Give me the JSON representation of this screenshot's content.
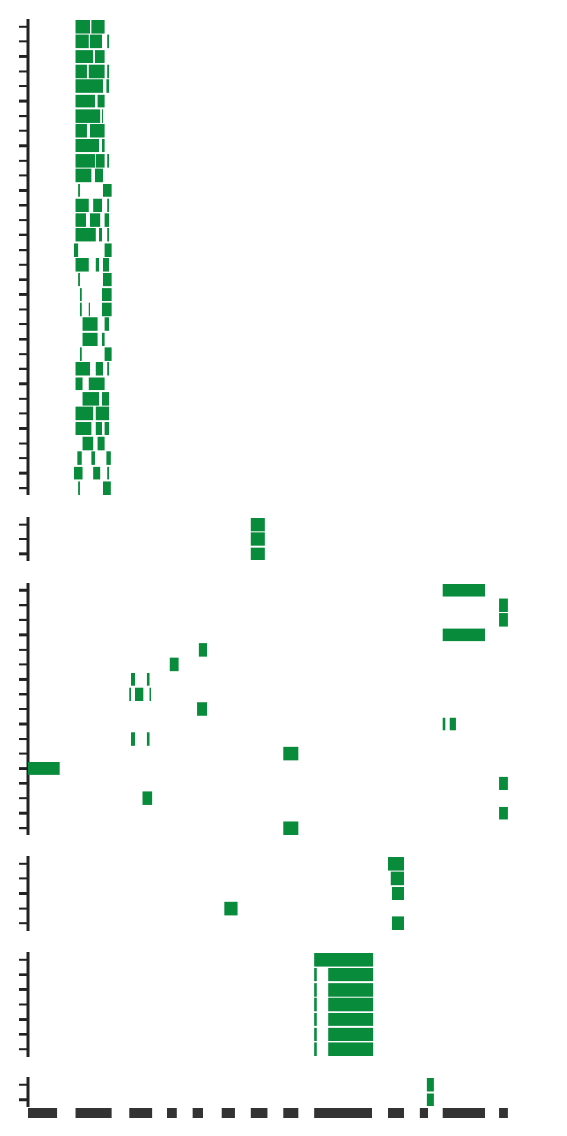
{
  "chart_data": {
    "type": "heatmap",
    "title": "",
    "xlabel": "",
    "ylabel": "",
    "grid": false,
    "legend": "none",
    "colors": {
      "cell": "#098b3c",
      "axis": "#333333",
      "tick": "#222222",
      "background": "#ffffff"
    },
    "x_range": [
      0,
      362
    ],
    "column_groups": [
      {
        "start": 0,
        "end": 20
      },
      {
        "start": 33,
        "end": 58
      },
      {
        "start": 70,
        "end": 86
      },
      {
        "start": 96,
        "end": 103
      },
      {
        "start": 114,
        "end": 121
      },
      {
        "start": 134,
        "end": 143
      },
      {
        "start": 154,
        "end": 166
      },
      {
        "start": 177,
        "end": 187
      },
      {
        "start": 198,
        "end": 238
      },
      {
        "start": 249,
        "end": 260
      },
      {
        "start": 271,
        "end": 277
      },
      {
        "start": 287,
        "end": 316
      },
      {
        "start": 326,
        "end": 332
      }
    ],
    "panels": [
      {
        "id": 1,
        "row_count": 32,
        "rows": [
          [
            [
              33,
              43
            ],
            [
              44,
              53
            ]
          ],
          [
            [
              33,
              42
            ],
            [
              43,
              51
            ],
            [
              55,
              56
            ]
          ],
          [
            [
              33,
              45
            ],
            [
              46,
              53
            ]
          ],
          [
            [
              33,
              41
            ],
            [
              42,
              53
            ],
            [
              55,
              56
            ]
          ],
          [
            [
              33,
              52
            ],
            [
              54,
              56
            ]
          ],
          [
            [
              33,
              46
            ],
            [
              48,
              53
            ]
          ],
          [
            [
              33,
              50
            ],
            [
              51,
              52
            ]
          ],
          [
            [
              33,
              41
            ],
            [
              43,
              53
            ]
          ],
          [
            [
              33,
              49
            ],
            [
              51,
              53
            ]
          ],
          [
            [
              33,
              46
            ],
            [
              47,
              53
            ],
            [
              55,
              56
            ]
          ],
          [
            [
              33,
              44
            ],
            [
              46,
              52
            ]
          ],
          [
            [
              35,
              36
            ],
            [
              52,
              58
            ]
          ],
          [
            [
              33,
              42
            ],
            [
              45,
              51
            ],
            [
              55,
              56
            ]
          ],
          [
            [
              33,
              40
            ],
            [
              43,
              50
            ],
            [
              53,
              56
            ]
          ],
          [
            [
              33,
              47
            ],
            [
              49,
              51
            ],
            [
              55,
              56
            ]
          ],
          [
            [
              32,
              35
            ],
            [
              53,
              58
            ]
          ],
          [
            [
              33,
              42
            ],
            [
              47,
              49
            ],
            [
              52,
              56
            ]
          ],
          [
            [
              35,
              36
            ],
            [
              52,
              58
            ]
          ],
          [
            [
              36,
              37
            ],
            [
              51,
              58
            ]
          ],
          [
            [
              36,
              37
            ],
            [
              42,
              43
            ],
            [
              51,
              58
            ]
          ],
          [
            [
              38,
              48
            ],
            [
              53,
              56
            ]
          ],
          [
            [
              38,
              48
            ],
            [
              51,
              53
            ]
          ],
          [
            [
              36,
              37
            ],
            [
              53,
              58
            ]
          ],
          [
            [
              33,
              43
            ],
            [
              47,
              52
            ],
            [
              55,
              56
            ]
          ],
          [
            [
              33,
              38
            ],
            [
              42,
              53
            ]
          ],
          [
            [
              38,
              49
            ],
            [
              51,
              56
            ]
          ],
          [
            [
              33,
              45
            ],
            [
              47,
              56
            ]
          ],
          [
            [
              33,
              44
            ],
            [
              47,
              51
            ],
            [
              53,
              56
            ]
          ],
          [
            [
              38,
              45
            ],
            [
              48,
              53
            ]
          ],
          [
            [
              34,
              37
            ],
            [
              44,
              46
            ],
            [
              54,
              57
            ]
          ],
          [
            [
              32,
              38
            ],
            [
              45,
              50
            ],
            [
              55,
              56
            ]
          ],
          [
            [
              35,
              36
            ],
            [
              52,
              57
            ]
          ]
        ]
      },
      {
        "id": 2,
        "row_count": 3,
        "rows": [
          [
            [
              154,
              164
            ]
          ],
          [
            [
              154,
              164
            ]
          ],
          [
            [
              154,
              164
            ]
          ]
        ]
      },
      {
        "id": 3,
        "row_count": 17,
        "rows": [
          [
            [
              287,
              316
            ]
          ],
          [
            [
              326,
              332
            ]
          ],
          [
            [
              326,
              332
            ]
          ],
          [
            [
              287,
              316
            ]
          ],
          [
            [
              118,
              124
            ]
          ],
          [
            [
              98,
              104
            ]
          ],
          [
            [
              71,
              74
            ],
            [
              82,
              84
            ]
          ],
          [
            [
              70,
              71
            ],
            [
              74,
              80
            ],
            [
              84,
              85
            ]
          ],
          [
            [
              117,
              124
            ]
          ],
          [
            [
              287,
              289
            ],
            [
              292,
              296
            ]
          ],
          [
            [
              71,
              74
            ],
            [
              82,
              84
            ]
          ],
          [
            [
              177,
              187
            ]
          ],
          [
            [
              0,
              22
            ]
          ],
          [
            [
              326,
              332
            ]
          ],
          [
            [
              79,
              86
            ]
          ],
          [
            [
              326,
              332
            ]
          ],
          [
            [
              177,
              187
            ]
          ]
        ]
      },
      {
        "id": 4,
        "row_count": 5,
        "rows": [
          [
            [
              249,
              260
            ]
          ],
          [
            [
              251,
              260
            ]
          ],
          [
            [
              252,
              260
            ]
          ],
          [
            [
              136,
              145
            ]
          ],
          [
            [
              252,
              260
            ]
          ]
        ]
      },
      {
        "id": 5,
        "row_count": 7,
        "rows": [
          [
            [
              198,
              239
            ]
          ],
          [
            [
              198,
              200
            ],
            [
              208,
              239
            ]
          ],
          [
            [
              198,
              200
            ],
            [
              208,
              239
            ]
          ],
          [
            [
              198,
              200
            ],
            [
              208,
              239
            ]
          ],
          [
            [
              198,
              200
            ],
            [
              208,
              239
            ]
          ],
          [
            [
              198,
              200
            ],
            [
              208,
              239
            ]
          ],
          [
            [
              198,
              200
            ],
            [
              208,
              239
            ]
          ]
        ]
      },
      {
        "id": 6,
        "row_count": 2,
        "rows": [
          [
            [
              276,
              281
            ]
          ],
          [
            [
              276,
              281
            ]
          ]
        ]
      }
    ]
  }
}
